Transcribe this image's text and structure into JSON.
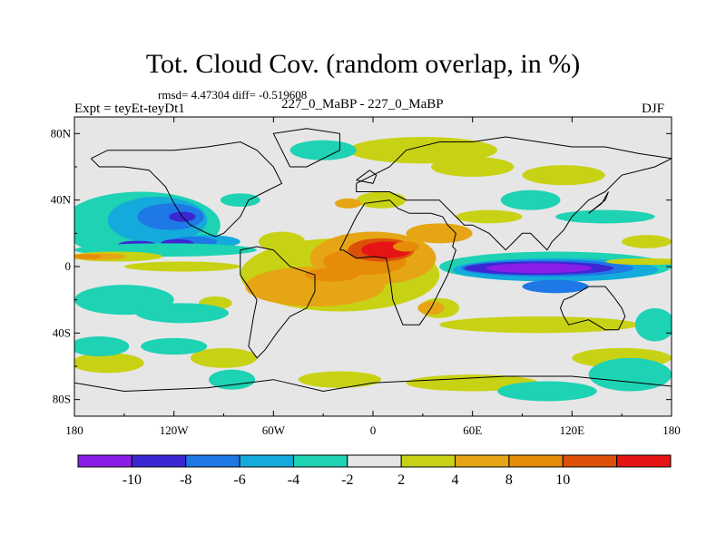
{
  "chart_data": {
    "type": "heatmap",
    "title": "Tot. Cloud Cov. (random overlap, in %)",
    "stats_line": "rmsd= 4.47304 diff= -0.519608",
    "left_label": "Expt = teyEt-teyDt1",
    "center_label": "227_0_MaBP - 227_0_MaBP",
    "right_label": "DJF",
    "xlim": [
      -180,
      180
    ],
    "ylim": [
      -90,
      90
    ],
    "x_ticks": [
      {
        "value": -180,
        "label": "180"
      },
      {
        "value": -120,
        "label": "120W"
      },
      {
        "value": -60,
        "label": "60W"
      },
      {
        "value": 0,
        "label": "0"
      },
      {
        "value": 60,
        "label": "60E"
      },
      {
        "value": 120,
        "label": "120E"
      },
      {
        "value": 180,
        "label": "180"
      }
    ],
    "y_ticks": [
      {
        "value": 80,
        "label": "80N"
      },
      {
        "value": 40,
        "label": "40N"
      },
      {
        "value": 0,
        "label": "0"
      },
      {
        "value": -40,
        "label": "40S"
      },
      {
        "value": -80,
        "label": "80S"
      }
    ],
    "colorbar": {
      "colors": [
        "#8a1ee6",
        "#3c28d2",
        "#1e78e6",
        "#14aadc",
        "#1ed2b4",
        "#e6e6e6",
        "#c8d214",
        "#e6a514",
        "#e68c0a",
        "#dc500a",
        "#e61414"
      ],
      "labels": [
        "-10",
        "-8",
        "-6",
        "-4",
        "-2",
        "2",
        "4",
        "8",
        "10"
      ]
    },
    "regions": [
      {
        "level": "2",
        "lon": -160,
        "lat": -58,
        "rlon": 22,
        "rlat": 6
      },
      {
        "level": "2",
        "lon": -90,
        "lat": -55,
        "rlon": 20,
        "rlat": 6
      },
      {
        "level": "2",
        "lon": -95,
        "lat": -22,
        "rlon": 10,
        "rlat": 4
      },
      {
        "level": "-2",
        "lon": -150,
        "lat": -20,
        "rlon": 30,
        "rlat": 9
      },
      {
        "level": "-2",
        "lon": -115,
        "lat": -28,
        "rlon": 28,
        "rlat": 6
      },
      {
        "level": "-2",
        "lon": -165,
        "lat": -48,
        "rlon": 18,
        "rlat": 6
      },
      {
        "level": "-2",
        "lon": -120,
        "lat": -48,
        "rlon": 20,
        "rlat": 5
      },
      {
        "level": "-2",
        "lon": -85,
        "lat": -68,
        "rlon": 14,
        "rlat": 6
      },
      {
        "level": "-2",
        "lon": -140,
        "lat": 25,
        "rlon": 48,
        "rlat": 20
      },
      {
        "level": "-4",
        "lon": -130,
        "lat": 28,
        "rlon": 30,
        "rlat": 14
      },
      {
        "level": "-6",
        "lon": -122,
        "lat": 30,
        "rlon": 20,
        "rlat": 8
      },
      {
        "level": "-8",
        "lon": -115,
        "lat": 30,
        "rlon": 8,
        "rlat": 3
      },
      {
        "level": "-4",
        "lon": -100,
        "lat": 15,
        "rlon": 20,
        "rlat": 4
      },
      {
        "level": "-6",
        "lon": -108,
        "lat": 15,
        "rlon": 14,
        "rlat": 3
      },
      {
        "level": "-8",
        "lon": -118,
        "lat": 14,
        "rlon": 10,
        "rlat": 2.5
      },
      {
        "level": "-8",
        "lon": -142,
        "lat": 13,
        "rlon": 12,
        "rlat": 2.5
      },
      {
        "level": "-2",
        "lon": -125,
        "lat": 10,
        "rlon": 55,
        "rlat": 4
      },
      {
        "level": "2",
        "lon": -155,
        "lat": 6,
        "rlon": 28,
        "rlat": 3
      },
      {
        "level": "4",
        "lon": -165,
        "lat": 6,
        "rlon": 16,
        "rlat": 2
      },
      {
        "level": "8",
        "lon": -172,
        "lat": 6,
        "rlon": 8,
        "rlat": 1.5
      },
      {
        "level": "2",
        "lon": -115,
        "lat": 0,
        "rlon": 35,
        "rlat": 3
      },
      {
        "level": "-2",
        "lon": -80,
        "lat": 40,
        "rlon": 12,
        "rlat": 4
      },
      {
        "level": "2",
        "lon": -60,
        "lat": 0,
        "rlon": 10,
        "rlat": 4
      },
      {
        "level": "2",
        "lon": -55,
        "lat": 15,
        "rlon": 14,
        "rlat": 6
      },
      {
        "level": "2",
        "lon": -20,
        "lat": -5,
        "rlon": 60,
        "rlat": 22
      },
      {
        "level": "4",
        "lon": -35,
        "lat": -12,
        "rlon": 42,
        "rlat": 12
      },
      {
        "level": "4",
        "lon": 0,
        "lat": 5,
        "rlon": 38,
        "rlat": 16
      },
      {
        "level": "4",
        "lon": 40,
        "lat": 20,
        "rlon": 20,
        "rlat": 6
      },
      {
        "level": "8",
        "lon": -5,
        "lat": 3,
        "rlon": 25,
        "rlat": 8
      },
      {
        "level": "8",
        "lon": -25,
        "lat": -5,
        "rlon": 16,
        "rlat": 4
      },
      {
        "level": "10",
        "lon": 5,
        "lat": 10,
        "rlon": 20,
        "rlat": 7
      },
      {
        "level": "10+",
        "lon": 8,
        "lat": 10,
        "rlon": 15,
        "rlat": 5
      },
      {
        "level": "8",
        "lon": 20,
        "lat": 12,
        "rlon": 8,
        "rlat": 3
      },
      {
        "level": "2",
        "lon": 5,
        "lat": 40,
        "rlon": 15,
        "rlat": 5
      },
      {
        "level": "4",
        "lon": -15,
        "lat": 38,
        "rlon": 8,
        "rlat": 3
      },
      {
        "level": "2",
        "lon": 30,
        "lat": 70,
        "rlon": 45,
        "rlat": 8
      },
      {
        "level": "2",
        "lon": 60,
        "lat": 60,
        "rlon": 25,
        "rlat": 6
      },
      {
        "level": "2",
        "lon": 115,
        "lat": 55,
        "rlon": 25,
        "rlat": 6
      },
      {
        "level": "2",
        "lon": 70,
        "lat": 30,
        "rlon": 20,
        "rlat": 4
      },
      {
        "level": "2",
        "lon": 40,
        "lat": -25,
        "rlon": 12,
        "rlat": 6
      },
      {
        "level": "4",
        "lon": 35,
        "lat": -25,
        "rlon": 8,
        "rlat": 4
      },
      {
        "level": "2",
        "lon": 100,
        "lat": -35,
        "rlon": 60,
        "rlat": 5
      },
      {
        "level": "2",
        "lon": 60,
        "lat": -70,
        "rlon": 40,
        "rlat": 5
      },
      {
        "level": "2",
        "lon": -20,
        "lat": -68,
        "rlon": 25,
        "rlat": 5
      },
      {
        "level": "2",
        "lon": 150,
        "lat": -55,
        "rlon": 30,
        "rlat": 6
      },
      {
        "level": "2",
        "lon": 165,
        "lat": 15,
        "rlon": 15,
        "rlat": 4
      },
      {
        "level": "-2",
        "lon": -30,
        "lat": 70,
        "rlon": 20,
        "rlat": 6
      },
      {
        "level": "-2",
        "lon": 95,
        "lat": 40,
        "rlon": 18,
        "rlat": 6
      },
      {
        "level": "-2",
        "lon": 140,
        "lat": 30,
        "rlon": 30,
        "rlat": 4
      },
      {
        "level": "-2",
        "lon": 155,
        "lat": -65,
        "rlon": 25,
        "rlat": 10
      },
      {
        "level": "-2",
        "lon": 170,
        "lat": -35,
        "rlon": 12,
        "rlat": 10
      },
      {
        "level": "-2",
        "lon": 105,
        "lat": -75,
        "rlon": 30,
        "rlat": 6
      },
      {
        "level": "-2",
        "lon": 110,
        "lat": 0,
        "rlon": 70,
        "rlat": 9
      },
      {
        "level": "-4",
        "lon": 110,
        "lat": -2,
        "rlon": 62,
        "rlat": 7
      },
      {
        "level": "-6",
        "lon": 105,
        "lat": -1,
        "rlon": 52,
        "rlat": 5
      },
      {
        "level": "-8",
        "lon": 100,
        "lat": -1,
        "rlon": 45,
        "rlat": 4
      },
      {
        "level": "-10",
        "lon": 100,
        "lat": -1,
        "rlon": 32,
        "rlat": 3
      },
      {
        "level": "-6",
        "lon": 110,
        "lat": -12,
        "rlon": 20,
        "rlat": 4
      },
      {
        "level": "2",
        "lon": 165,
        "lat": 3,
        "rlon": 25,
        "rlat": 2
      }
    ],
    "continents": [
      [
        [
          -20,
          10
        ],
        [
          -15,
          20
        ],
        [
          -10,
          30
        ],
        [
          -5,
          38
        ],
        [
          10,
          40
        ],
        [
          15,
          35
        ],
        [
          22,
          32
        ],
        [
          35,
          32
        ],
        [
          42,
          30
        ],
        [
          45,
          25
        ],
        [
          50,
          20
        ],
        [
          48,
          12
        ],
        [
          50,
          10
        ],
        [
          45,
          -5
        ],
        [
          40,
          -15
        ],
        [
          35,
          -25
        ],
        [
          28,
          -35
        ],
        [
          18,
          -35
        ],
        [
          12,
          -20
        ],
        [
          10,
          -5
        ],
        [
          8,
          5
        ],
        [
          0,
          6
        ],
        [
          -10,
          5
        ],
        [
          -18,
          10
        ],
        [
          -20,
          10
        ]
      ],
      [
        [
          -80,
          10
        ],
        [
          -70,
          12
        ],
        [
          -60,
          10
        ],
        [
          -50,
          0
        ],
        [
          -35,
          -5
        ],
        [
          -35,
          -15
        ],
        [
          -40,
          -25
        ],
        [
          -50,
          -30
        ],
        [
          -58,
          -40
        ],
        [
          -65,
          -50
        ],
        [
          -70,
          -55
        ],
        [
          -75,
          -48
        ],
        [
          -72,
          -30
        ],
        [
          -70,
          -20
        ],
        [
          -80,
          -5
        ],
        [
          -80,
          5
        ],
        [
          -80,
          10
        ]
      ],
      [
        [
          -10,
          50
        ],
        [
          0,
          55
        ],
        [
          10,
          60
        ],
        [
          20,
          70
        ],
        [
          40,
          75
        ],
        [
          60,
          75
        ],
        [
          80,
          78
        ],
        [
          100,
          75
        ],
        [
          120,
          72
        ],
        [
          140,
          72
        ],
        [
          160,
          68
        ],
        [
          180,
          65
        ],
        [
          170,
          60
        ],
        [
          150,
          55
        ],
        [
          140,
          45
        ],
        [
          130,
          40
        ],
        [
          125,
          35
        ],
        [
          120,
          30
        ],
        [
          115,
          22
        ],
        [
          108,
          15
        ],
        [
          105,
          10
        ],
        [
          100,
          15
        ],
        [
          95,
          20
        ],
        [
          90,
          20
        ],
        [
          85,
          15
        ],
        [
          80,
          10
        ],
        [
          75,
          15
        ],
        [
          70,
          20
        ],
        [
          60,
          25
        ],
        [
          55,
          25
        ],
        [
          50,
          30
        ],
        [
          40,
          40
        ],
        [
          30,
          40
        ],
        [
          20,
          40
        ],
        [
          10,
          45
        ],
        [
          0,
          45
        ],
        [
          -10,
          45
        ],
        [
          -10,
          50
        ]
      ],
      [
        [
          -170,
          65
        ],
        [
          -160,
          70
        ],
        [
          -140,
          70
        ],
        [
          -120,
          70
        ],
        [
          -100,
          72
        ],
        [
          -80,
          75
        ],
        [
          -70,
          70
        ],
        [
          -60,
          60
        ],
        [
          -55,
          50
        ],
        [
          -65,
          45
        ],
        [
          -75,
          40
        ],
        [
          -80,
          30
        ],
        [
          -85,
          25
        ],
        [
          -90,
          20
        ],
        [
          -95,
          18
        ],
        [
          -100,
          20
        ],
        [
          -110,
          25
        ],
        [
          -115,
          30
        ],
        [
          -120,
          38
        ],
        [
          -125,
          48
        ],
        [
          -135,
          58
        ],
        [
          -150,
          60
        ],
        [
          -165,
          60
        ],
        [
          -170,
          65
        ]
      ],
      [
        [
          115,
          -20
        ],
        [
          120,
          -18
        ],
        [
          130,
          -12
        ],
        [
          140,
          -12
        ],
        [
          145,
          -18
        ],
        [
          150,
          -25
        ],
        [
          152,
          -30
        ],
        [
          148,
          -38
        ],
        [
          140,
          -38
        ],
        [
          130,
          -32
        ],
        [
          118,
          -35
        ],
        [
          115,
          -30
        ],
        [
          113,
          -25
        ],
        [
          115,
          -20
        ]
      ],
      [
        [
          -180,
          -70
        ],
        [
          -150,
          -75
        ],
        [
          -100,
          -73
        ],
        [
          -60,
          -68
        ],
        [
          -30,
          -75
        ],
        [
          0,
          -70
        ],
        [
          40,
          -68
        ],
        [
          80,
          -66
        ],
        [
          120,
          -66
        ],
        [
          160,
          -70
        ],
        [
          180,
          -72
        ],
        [
          180,
          -90
        ],
        [
          -180,
          -90
        ],
        [
          -180,
          -70
        ]
      ],
      [
        [
          -50,
          60
        ],
        [
          -40,
          60
        ],
        [
          -20,
          70
        ],
        [
          -20,
          80
        ],
        [
          -40,
          83
        ],
        [
          -60,
          80
        ],
        [
          -55,
          70
        ],
        [
          -50,
          60
        ]
      ],
      [
        [
          -10,
          52
        ],
        [
          -2,
          58
        ],
        [
          2,
          55
        ],
        [
          0,
          50
        ],
        [
          -10,
          52
        ]
      ],
      [
        [
          130,
          32
        ],
        [
          140,
          40
        ],
        [
          142,
          45
        ],
        [
          138,
          38
        ],
        [
          130,
          32
        ]
      ]
    ]
  }
}
